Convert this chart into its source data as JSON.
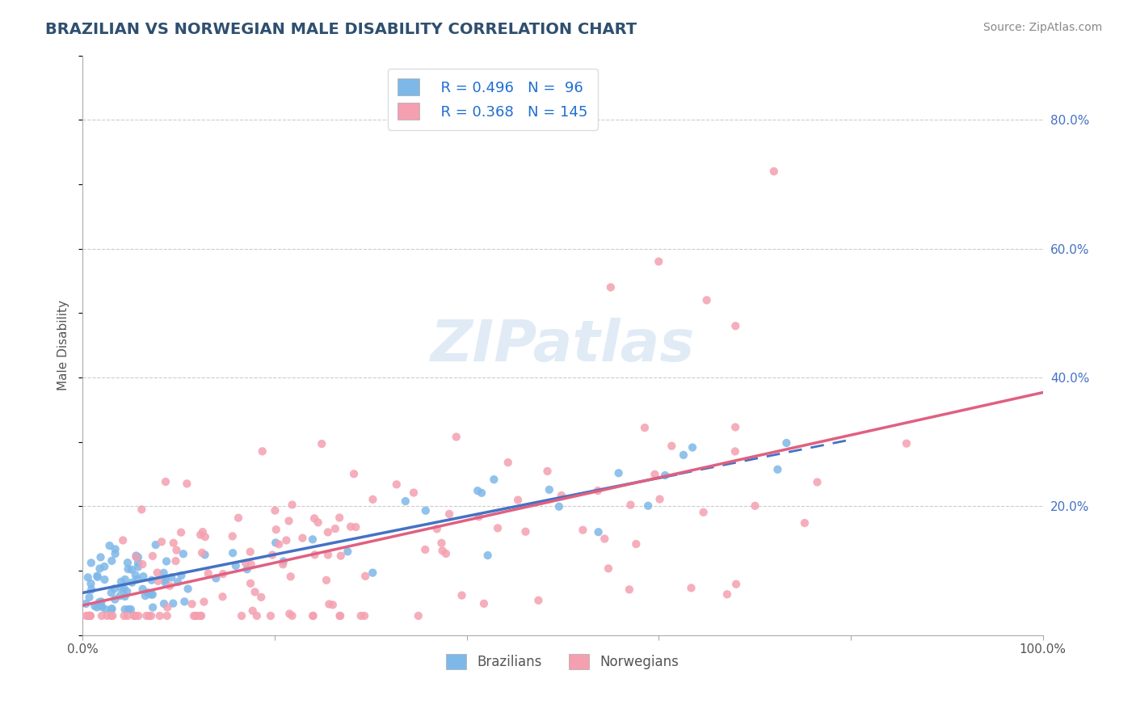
{
  "title": "BRAZILIAN VS NORWEGIAN MALE DISABILITY CORRELATION CHART",
  "source": "Source: ZipAtlas.com",
  "ylabel": "Male Disability",
  "xlim": [
    0,
    1.0
  ],
  "ylim": [
    0,
    0.9
  ],
  "ytick_right_labels": [
    "20.0%",
    "40.0%",
    "60.0%",
    "80.0%"
  ],
  "ytick_right_vals": [
    0.2,
    0.4,
    0.6,
    0.8
  ],
  "brazil_R": 0.496,
  "brazil_N": 96,
  "norway_R": 0.368,
  "norway_N": 145,
  "brazil_color": "#7EB8E8",
  "norway_color": "#F4A0B0",
  "brazil_line_color": "#4472C4",
  "norway_line_color": "#E06080",
  "background_color": "#FFFFFF",
  "grid_color": "#CCCCCC",
  "title_color": "#2F4F6F",
  "legend_R_color": "#1F6FD0"
}
